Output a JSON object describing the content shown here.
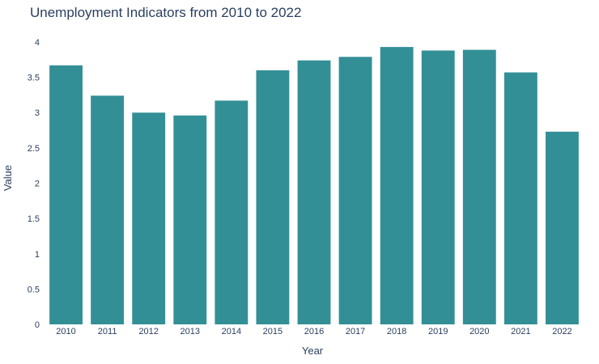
{
  "chart_data": {
    "type": "bar",
    "title": "Unemployment Indicators from 2010 to 2022",
    "xlabel": "Year",
    "ylabel": "Value",
    "categories": [
      "2010",
      "2011",
      "2012",
      "2013",
      "2014",
      "2015",
      "2016",
      "2017",
      "2018",
      "2019",
      "2020",
      "2021",
      "2022"
    ],
    "values": [
      3.67,
      3.24,
      3.0,
      2.96,
      3.17,
      3.6,
      3.74,
      3.79,
      3.93,
      3.88,
      3.89,
      3.57,
      2.73
    ],
    "ylim": [
      0,
      4.08
    ],
    "yticks": [
      0,
      0.5,
      1,
      1.5,
      2,
      2.5,
      3,
      3.5,
      4
    ],
    "ytick_labels": [
      "0",
      "0.5",
      "1",
      "1.5",
      "2",
      "2.5",
      "3",
      "3.5",
      "4"
    ],
    "bar_color": "#338f96",
    "grid": false,
    "legend": "none"
  }
}
